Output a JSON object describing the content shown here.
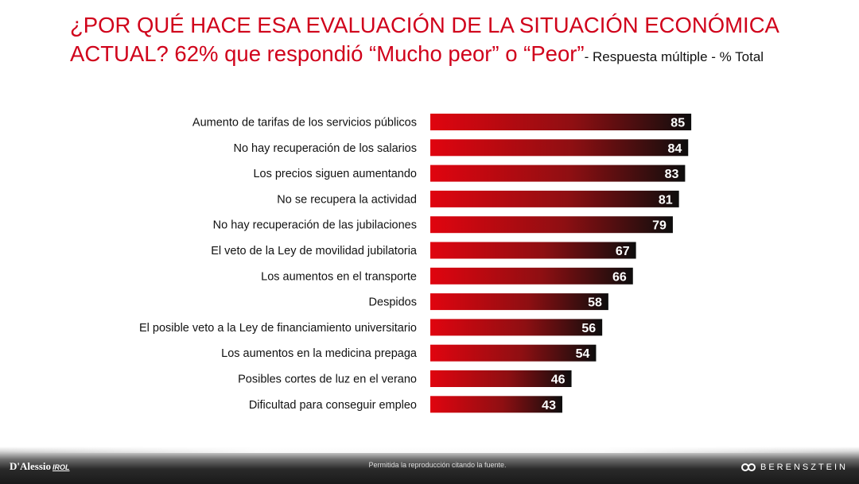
{
  "title": {
    "main": "¿POR QUÉ HACE ESA EVALUACIÓN DE LA SITUACIÓN ECONÓMICA ACTUAL? 62% que respondió “Mucho peor” o “Peor”",
    "subtitle": "- Respuesta múltiple - % Total"
  },
  "chart_data": {
    "type": "bar",
    "orientation": "horizontal",
    "title": "¿POR QUÉ HACE ESA EVALUACIÓN DE LA SITUACIÓN ECONÓMICA ACTUAL? 62% que respondió “Mucho peor” o “Peor”",
    "subtitle": "- Respuesta múltiple - % Total",
    "categories": [
      "Aumento de tarifas de los servicios públicos",
      "No hay recuperación de los salarios",
      "Los precios siguen aumentando",
      "No se recupera la actividad",
      "No hay recuperación de las jubilaciones",
      "El veto de la Ley de movilidad jubilatoria",
      "Los aumentos en el transporte",
      "Despidos",
      "El posible veto a la Ley de financiamiento universitario",
      "Los aumentos en la medicina prepaga",
      "Posibles cortes de luz en el verano",
      "Dificultad para conseguir empleo"
    ],
    "values": [
      85,
      84,
      83,
      81,
      79,
      67,
      66,
      58,
      56,
      54,
      46,
      43
    ],
    "xlim": [
      0,
      100
    ],
    "xlabel": "",
    "ylabel": "",
    "grid": false,
    "colors": {
      "start": "#e0040f",
      "mid": "#8e0f12",
      "end": "#0d0d0d",
      "label": "#ffffff"
    }
  },
  "footer": {
    "left_logo": "D'Alessio",
    "left_logo_sub": "IROL",
    "notice": "Permitida la reproducción citando la fuente.",
    "right_logo": "BERENSZTEIN"
  }
}
